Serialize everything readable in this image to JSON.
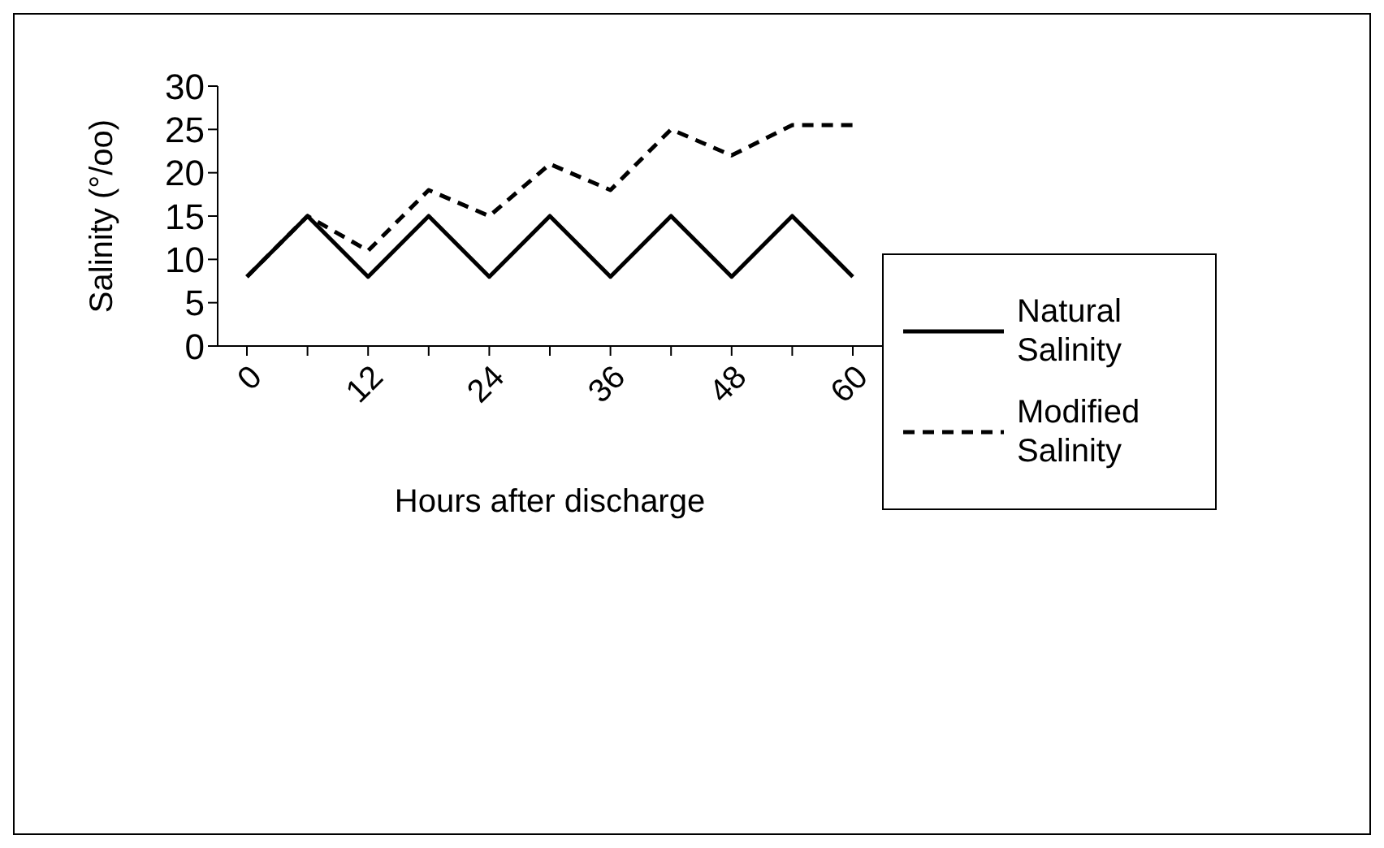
{
  "chart_data": {
    "type": "line",
    "xlabel": "Hours after discharge",
    "ylabel": "Salinity (°/oo)",
    "categories": [
      "0",
      null,
      "12",
      null,
      "24",
      null,
      "36",
      null,
      "48",
      null,
      "60"
    ],
    "series": [
      {
        "name": "Natural Salinity",
        "color": "#000000",
        "line_style": "solid",
        "values": [
          8,
          15,
          8,
          15,
          8,
          15,
          8,
          15,
          8,
          15,
          8
        ]
      },
      {
        "name": "Modified Salinity",
        "color": "#000000",
        "line_style": "dashed",
        "values": [
          8,
          15,
          11,
          18,
          15,
          21,
          18,
          25,
          22,
          25.5,
          25.5
        ]
      }
    ],
    "ylim": [
      0,
      30
    ],
    "yticks": [
      0,
      5,
      10,
      15,
      20,
      25,
      30
    ],
    "grid": false,
    "legend": "right",
    "marker": "none"
  }
}
